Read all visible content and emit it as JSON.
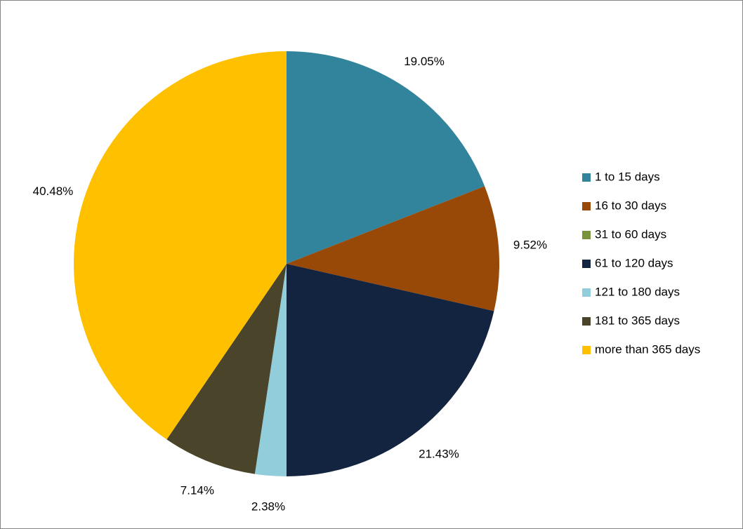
{
  "chart_data": {
    "type": "pie",
    "categories": [
      "1 to 15 days",
      "16 to 30 days",
      "31 to 60 days",
      "61 to 120 days",
      "121 to 180 days",
      "181 to 365 days",
      "more than 365 days"
    ],
    "values": [
      19.05,
      9.52,
      0,
      21.43,
      2.38,
      7.14,
      40.48
    ],
    "value_labels": [
      "19.05%",
      "9.52%",
      null,
      "21.43%",
      "2.38%",
      "7.14%",
      "40.48%"
    ],
    "colors": [
      "#31849b",
      "#984807",
      "#77933c",
      "#12243f",
      "#92cddc",
      "#4a452a",
      "#ffc000"
    ],
    "legend": "right"
  }
}
